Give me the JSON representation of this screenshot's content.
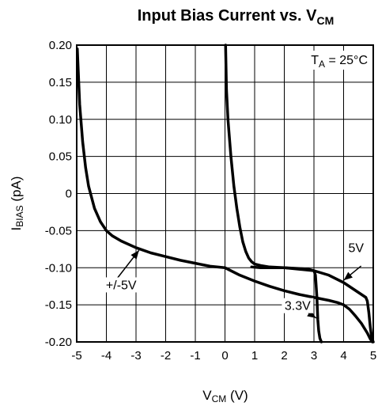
{
  "chart_data": {
    "type": "line",
    "title_main": "Input Bias Current vs. V",
    "title_sub": "CM",
    "xlabel_main": "V",
    "xlabel_sub": "CM",
    "xlabel_unit": " (V)",
    "ylabel_main": "I",
    "ylabel_sub": "BIAS",
    "ylabel_unit": " (pA)",
    "xlim": [
      -5,
      5
    ],
    "ylim": [
      -0.2,
      0.2
    ],
    "x_ticks": [
      "-5",
      "-4",
      "-3",
      "-2",
      "-1",
      "0",
      "1",
      "2",
      "3",
      "4",
      "5"
    ],
    "y_ticks": [
      "0.20",
      "0.15",
      "0.10",
      "0.05",
      "0",
      "-0.05",
      "-0.10",
      "-0.15",
      "-0.20"
    ],
    "grid": true,
    "temperature_label": {
      "main": "T",
      "sub": "A",
      "rest": " = 25°C"
    },
    "series": [
      {
        "name": "+/-5V",
        "x": [
          -4.98,
          -4.9,
          -4.8,
          -4.7,
          -4.6,
          -4.4,
          -4.2,
          -4.0,
          -3.8,
          -3.5,
          -3.0,
          -2.5,
          -2.0,
          -1.5,
          -1.0,
          -0.5,
          0.0,
          0.5,
          1.0,
          1.5,
          2.0,
          2.5,
          3.0,
          3.5,
          3.8,
          4.0,
          4.2,
          4.4,
          4.6,
          4.8,
          4.9,
          4.97
        ],
        "y": [
          0.195,
          0.12,
          0.07,
          0.035,
          0.01,
          -0.02,
          -0.038,
          -0.05,
          -0.057,
          -0.064,
          -0.073,
          -0.08,
          -0.085,
          -0.09,
          -0.094,
          -0.098,
          -0.1,
          -0.11,
          -0.118,
          -0.125,
          -0.131,
          -0.136,
          -0.14,
          -0.144,
          -0.147,
          -0.15,
          -0.156,
          -0.165,
          -0.175,
          -0.188,
          -0.196,
          -0.2
        ]
      },
      {
        "name": "5V",
        "x": [
          0.02,
          0.05,
          0.1,
          0.2,
          0.3,
          0.4,
          0.5,
          0.6,
          0.7,
          0.8,
          0.9,
          1.0,
          1.2,
          1.5,
          2.0,
          2.5,
          3.0,
          3.5,
          4.0,
          4.3,
          4.6,
          4.75,
          4.8,
          4.85,
          4.9,
          4.95,
          5.0
        ],
        "y": [
          0.2,
          0.14,
          0.1,
          0.05,
          0.01,
          -0.02,
          -0.045,
          -0.065,
          -0.078,
          -0.087,
          -0.092,
          -0.095,
          -0.097,
          -0.099,
          -0.1,
          -0.102,
          -0.104,
          -0.11,
          -0.12,
          -0.128,
          -0.136,
          -0.14,
          -0.145,
          -0.16,
          -0.18,
          -0.195,
          -0.2
        ]
      },
      {
        "name": "3.3V",
        "x": [
          0.9,
          1.2,
          1.5,
          2.0,
          2.5,
          2.8,
          3.0,
          3.05,
          3.1,
          3.13,
          3.16,
          3.2,
          3.25
        ],
        "y": [
          -0.099,
          -0.1,
          -0.1,
          -0.1,
          -0.101,
          -0.102,
          -0.104,
          -0.11,
          -0.14,
          -0.17,
          -0.185,
          -0.195,
          -0.2
        ]
      }
    ],
    "annotations": [
      {
        "text": "+/-5V",
        "series": "+/-5V"
      },
      {
        "text": "5V",
        "series": "5V"
      },
      {
        "text": "3.3V",
        "series": "3.3V"
      }
    ]
  }
}
